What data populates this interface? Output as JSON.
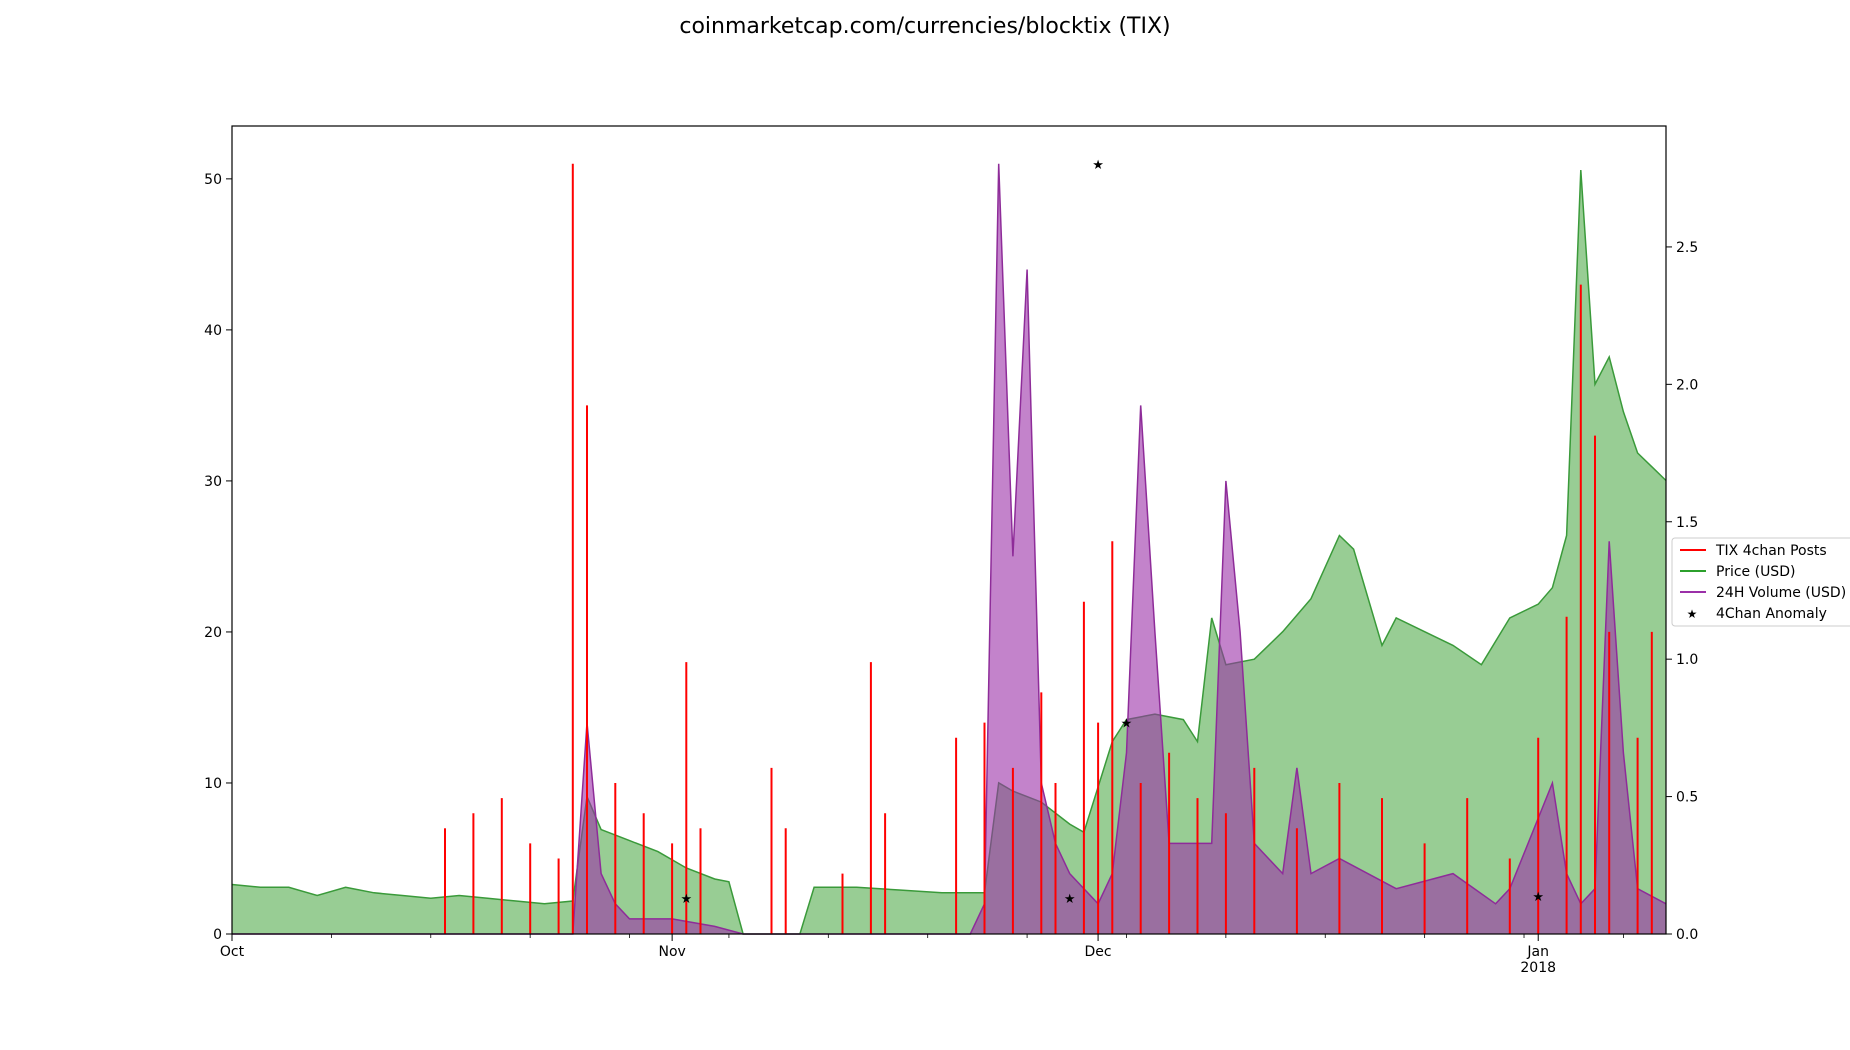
{
  "chart_data": {
    "type": "line",
    "title": "coinmarketcap.com/currencies/blocktix (TIX)",
    "xlabel": "",
    "ylabel": "",
    "y2label": "",
    "x_range": [
      "2017-10-01",
      "2018-01-10"
    ],
    "ylim": [
      0,
      53.5
    ],
    "y2lim": [
      0,
      2.94
    ],
    "x_ticks": [
      {
        "date": "2017-10-01",
        "label": "Oct",
        "sublabel": ""
      },
      {
        "date": "2017-11-01",
        "label": "Nov",
        "sublabel": ""
      },
      {
        "date": "2017-12-01",
        "label": "Dec",
        "sublabel": ""
      },
      {
        "date": "2018-01-01",
        "label": "Jan",
        "sublabel": "2018"
      }
    ],
    "y_ticks": [
      "0",
      "10",
      "20",
      "30",
      "40",
      "50"
    ],
    "y2_ticks": [
      "0.0",
      "0.5",
      "1.0",
      "1.5",
      "2.0",
      "2.5"
    ],
    "grid": false,
    "legend": {
      "placement": "right",
      "entries": [
        {
          "label": "TIX 4chan Posts",
          "color": "#ff0000",
          "marker": "line"
        },
        {
          "label": "Price (USD)",
          "color": "#2ca02c",
          "marker": "line"
        },
        {
          "label": "24H Volume (USD)",
          "color": "#9b30a8",
          "marker": "line"
        },
        {
          "label": "4Chan Anomaly",
          "color": "#000000",
          "marker": "star"
        }
      ]
    },
    "series": [
      {
        "name": "Price (USD)",
        "axis": "right",
        "color": "#2ca02c",
        "style": "filled-line",
        "x": [
          "2017-10-01",
          "2017-10-03",
          "2017-10-05",
          "2017-10-07",
          "2017-10-09",
          "2017-10-11",
          "2017-10-13",
          "2017-10-15",
          "2017-10-17",
          "2017-10-19",
          "2017-10-21",
          "2017-10-23",
          "2017-10-25",
          "2017-10-26",
          "2017-10-27",
          "2017-10-29",
          "2017-10-31",
          "2017-11-02",
          "2017-11-04",
          "2017-11-05",
          "2017-11-06",
          "2017-11-10",
          "2017-11-11",
          "2017-11-14",
          "2017-11-17",
          "2017-11-20",
          "2017-11-23",
          "2017-11-24",
          "2017-11-25",
          "2017-11-27",
          "2017-11-29",
          "2017-11-30",
          "2017-12-02",
          "2017-12-03",
          "2017-12-05",
          "2017-12-07",
          "2017-12-08",
          "2017-12-09",
          "2017-12-10",
          "2017-12-12",
          "2017-12-14",
          "2017-12-16",
          "2017-12-18",
          "2017-12-19",
          "2017-12-21",
          "2017-12-22",
          "2017-12-24",
          "2017-12-26",
          "2017-12-28",
          "2017-12-30",
          "2018-01-01",
          "2018-01-02",
          "2018-01-03",
          "2018-01-04",
          "2018-01-05",
          "2018-01-06",
          "2018-01-07",
          "2018-01-08",
          "2018-01-10"
        ],
        "values": [
          0.18,
          0.17,
          0.17,
          0.14,
          0.17,
          0.15,
          0.14,
          0.13,
          0.14,
          0.13,
          0.12,
          0.11,
          0.12,
          0.5,
          0.38,
          0.34,
          0.3,
          0.24,
          0.2,
          0.19,
          0.0,
          0.0,
          0.17,
          0.17,
          0.16,
          0.15,
          0.15,
          0.55,
          0.52,
          0.48,
          0.4,
          0.37,
          0.7,
          0.78,
          0.8,
          0.78,
          0.7,
          1.15,
          0.98,
          1.0,
          1.1,
          1.22,
          1.45,
          1.4,
          1.05,
          1.15,
          1.1,
          1.05,
          0.98,
          1.15,
          1.2,
          1.26,
          1.45,
          2.78,
          2.0,
          2.1,
          1.9,
          1.75,
          1.65
        ]
      },
      {
        "name": "24H Volume (USD)",
        "axis": "left",
        "color": "#9b30a8",
        "style": "filled-line",
        "x": [
          "2017-10-01",
          "2017-10-24",
          "2017-10-25",
          "2017-10-26",
          "2017-10-27",
          "2017-10-28",
          "2017-10-29",
          "2017-11-01",
          "2017-11-04",
          "2017-11-06",
          "2017-11-20",
          "2017-11-22",
          "2017-11-23",
          "2017-11-24",
          "2017-11-25",
          "2017-11-26",
          "2017-11-27",
          "2017-11-28",
          "2017-11-29",
          "2017-12-01",
          "2017-12-02",
          "2017-12-03",
          "2017-12-04",
          "2017-12-05",
          "2017-12-06",
          "2017-12-08",
          "2017-12-09",
          "2017-12-10",
          "2017-12-11",
          "2017-12-12",
          "2017-12-14",
          "2017-12-15",
          "2017-12-16",
          "2017-12-18",
          "2017-12-22",
          "2017-12-26",
          "2017-12-29",
          "2017-12-30",
          "2018-01-02",
          "2018-01-03",
          "2018-01-04",
          "2018-01-05",
          "2018-01-06",
          "2018-01-07",
          "2018-01-08",
          "2018-01-10"
        ],
        "values": [
          0,
          0,
          0,
          14,
          4,
          2,
          1,
          1,
          0.5,
          0,
          0,
          0,
          2,
          51,
          25,
          44,
          10,
          6,
          4,
          2,
          4,
          12,
          35,
          20,
          6,
          6,
          6,
          30,
          20,
          6,
          4,
          11,
          4,
          5,
          3,
          4,
          2,
          3,
          10,
          4,
          2,
          3,
          26,
          12,
          3,
          2
        ]
      },
      {
        "name": "TIX 4chan Posts",
        "axis": "left",
        "color": "#ff0000",
        "style": "spikes",
        "x": [
          "2017-10-16",
          "2017-10-18",
          "2017-10-20",
          "2017-10-22",
          "2017-10-24",
          "2017-10-25",
          "2017-10-26",
          "2017-10-28",
          "2017-10-30",
          "2017-11-01",
          "2017-11-02",
          "2017-11-03",
          "2017-11-08",
          "2017-11-09",
          "2017-11-13",
          "2017-11-15",
          "2017-11-16",
          "2017-11-21",
          "2017-11-23",
          "2017-11-25",
          "2017-11-27",
          "2017-11-28",
          "2017-11-30",
          "2017-12-01",
          "2017-12-02",
          "2017-12-04",
          "2017-12-06",
          "2017-12-08",
          "2017-12-10",
          "2017-12-12",
          "2017-12-15",
          "2017-12-18",
          "2017-12-21",
          "2017-12-24",
          "2017-12-27",
          "2017-12-30",
          "2018-01-01",
          "2018-01-03",
          "2018-01-04",
          "2018-01-05",
          "2018-01-06",
          "2018-01-08",
          "2018-01-09"
        ],
        "values": [
          7,
          8,
          9,
          6,
          5,
          51,
          35,
          10,
          8,
          6,
          18,
          7,
          11,
          7,
          4,
          18,
          8,
          13,
          14,
          11,
          16,
          10,
          22,
          14,
          26,
          10,
          12,
          9,
          8,
          11,
          7,
          10,
          9,
          6,
          9,
          5,
          13,
          21,
          43,
          33,
          20,
          13,
          20
        ]
      },
      {
        "name": "4Chan Anomaly",
        "axis": "left",
        "color": "#000000",
        "style": "markers",
        "x": [
          "2017-11-02",
          "2017-11-29",
          "2017-12-01",
          "2017-12-03",
          "2018-01-01"
        ],
        "values": [
          2.4,
          2.4,
          51,
          14,
          2.5
        ]
      }
    ]
  }
}
